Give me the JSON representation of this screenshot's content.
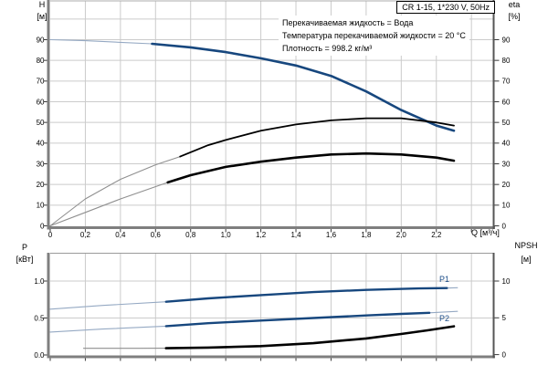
{
  "title_box": {
    "text": "CR 1-15, 1*230 V, 50Hz"
  },
  "info_lines": [
    "Перекачиваемая жидкость = Вода",
    "Температура перекачиваемой жидкости = 20 °C",
    "Плотность = 998.2 кг/м³"
  ],
  "colors": {
    "curve_blue": "#17477E",
    "curve_blue_light": "#95A9C3",
    "curve_black": "#000000",
    "curve_gray_light": "#8F8F8F",
    "grid": "#CBCBCB",
    "spine": "#7F7F7F",
    "spine_dark": "#555555",
    "tick": "#3A3A3A",
    "label_blue": "#1D4E89"
  },
  "chart_data": [
    {
      "type": "line",
      "title": "CR 1-15, 1*230 V, 50Hz",
      "x_axis": {
        "label": "Q [м³/ч]",
        "min": 0,
        "max": 2.53,
        "grid_step": 0.2,
        "ticks": [
          {
            "v": 0,
            "t": "0"
          },
          {
            "v": 0.2,
            "t": "0,2"
          },
          {
            "v": 0.4,
            "t": "0,4"
          },
          {
            "v": 0.6,
            "t": "0,6"
          },
          {
            "v": 0.8,
            "t": "0,8"
          },
          {
            "v": 1.0,
            "t": "1,0"
          },
          {
            "v": 1.2,
            "t": "1,2"
          },
          {
            "v": 1.4,
            "t": "1,4"
          },
          {
            "v": 1.6,
            "t": "1,6"
          },
          {
            "v": 1.8,
            "t": "1,8"
          },
          {
            "v": 2.0,
            "t": "2,0"
          },
          {
            "v": 2.2,
            "t": "2,2"
          }
        ]
      },
      "y_left": {
        "label": "H",
        "unit": "[м]",
        "min": 0,
        "max": 109,
        "ticks": [
          {
            "v": 90,
            "t": "90"
          },
          {
            "v": 80,
            "t": "80"
          },
          {
            "v": 70,
            "t": "70"
          },
          {
            "v": 60,
            "t": "60"
          },
          {
            "v": 50,
            "t": "50"
          },
          {
            "v": 40,
            "t": "40"
          },
          {
            "v": 30,
            "t": "30"
          },
          {
            "v": 20,
            "t": "20"
          },
          {
            "v": 10,
            "t": "10"
          },
          {
            "v": 0,
            "t": "0"
          }
        ]
      },
      "y_right": {
        "label": "eta",
        "unit": "[%]",
        "min": 0,
        "max": 109,
        "ticks": [
          {
            "v": 90,
            "t": "90"
          },
          {
            "v": 80,
            "t": "80"
          },
          {
            "v": 70,
            "t": "70"
          },
          {
            "v": 60,
            "t": "60"
          },
          {
            "v": 50,
            "t": "50"
          },
          {
            "v": 40,
            "t": "40"
          },
          {
            "v": 30,
            "t": "30"
          },
          {
            "v": 20,
            "t": "20"
          },
          {
            "v": 10,
            "t": "10"
          },
          {
            "v": 0,
            "t": "0"
          }
        ]
      },
      "series": [
        {
          "id": "curve-H",
          "name": "H",
          "color_role": "blue",
          "scale": "left",
          "width": 2.6,
          "thick_from": 0.58,
          "thick_to": 2.3,
          "x": [
            0,
            0.2,
            0.4,
            0.58,
            0.8,
            1.0,
            1.2,
            1.4,
            1.6,
            1.8,
            2.0,
            2.2,
            2.3
          ],
          "y": [
            90,
            89.5,
            88.7,
            88,
            86.3,
            84,
            81,
            77.5,
            72.5,
            65,
            56,
            48.5,
            46
          ]
        },
        {
          "id": "curve-eta-upper",
          "name": "eta (upper)",
          "color_role": "black",
          "scale": "right",
          "width": 1.8,
          "thick_from": 0.74,
          "thick_to": 2.3,
          "x": [
            0,
            0.2,
            0.4,
            0.6,
            0.74,
            0.9,
            1.0,
            1.2,
            1.4,
            1.6,
            1.8,
            2.0,
            2.2,
            2.3
          ],
          "y": [
            0,
            13,
            22.5,
            29.5,
            33.5,
            39,
            41.5,
            46,
            49,
            51,
            52,
            52,
            50,
            48.5
          ]
        },
        {
          "id": "curve-eta-lower",
          "name": "eta (lower)",
          "color_role": "black",
          "scale": "right",
          "width": 2.6,
          "thick_from": 0.67,
          "thick_to": 2.3,
          "x": [
            0,
            0.2,
            0.4,
            0.67,
            0.8,
            1.0,
            1.2,
            1.4,
            1.6,
            1.8,
            2.0,
            2.2,
            2.3
          ],
          "y": [
            0,
            6.5,
            13,
            21,
            24.5,
            28.5,
            31,
            33,
            34.5,
            35,
            34.5,
            33,
            31.5
          ]
        }
      ]
    },
    {
      "type": "line",
      "x_axis": {
        "label": "",
        "min": 0,
        "max": 2.53,
        "grid_step": 0.2,
        "ticks": []
      },
      "y_left": {
        "label": "P",
        "unit": "[кВт]",
        "min": 0,
        "max": 1.38,
        "ticks": [
          {
            "v": 1.0,
            "t": "1.0"
          },
          {
            "v": 0.5,
            "t": "0.5"
          },
          {
            "v": 0,
            "t": "0.0"
          }
        ]
      },
      "y_right": {
        "label": "NPSH",
        "unit": "[м]",
        "min": 0,
        "max": 13.7,
        "ticks": [
          {
            "v": 10,
            "t": "10"
          },
          {
            "v": 5,
            "t": "5"
          },
          {
            "v": 0,
            "t": "0"
          }
        ]
      },
      "series": [
        {
          "id": "curve-P1",
          "name": "P1",
          "curve_label": "P1",
          "color_role": "blue",
          "scale": "left",
          "width": 2.4,
          "thick_from": 0.66,
          "thick_to": 2.26,
          "x": [
            0,
            0.3,
            0.66,
            0.9,
            1.2,
            1.5,
            1.8,
            2.1,
            2.26,
            2.32
          ],
          "y": [
            0.62,
            0.67,
            0.72,
            0.765,
            0.81,
            0.85,
            0.88,
            0.9,
            0.905,
            0.91
          ]
        },
        {
          "id": "curve-P2",
          "name": "P2",
          "curve_label": "P2",
          "color_role": "blue",
          "scale": "left",
          "width": 2.4,
          "thick_from": 0.66,
          "thick_to": 2.16,
          "x": [
            0,
            0.3,
            0.66,
            0.9,
            1.2,
            1.5,
            1.8,
            2.0,
            2.16,
            2.32
          ],
          "y": [
            0.31,
            0.35,
            0.39,
            0.43,
            0.465,
            0.5,
            0.535,
            0.555,
            0.57,
            0.59
          ]
        },
        {
          "id": "curve-NPSH",
          "name": "NPSH",
          "color_role": "black",
          "scale": "right",
          "width": 2.6,
          "thick_from": 0.66,
          "thick_to": 2.3,
          "x": [
            0.19,
            0.5,
            0.66,
            0.9,
            1.2,
            1.5,
            1.8,
            2.0,
            2.15,
            2.3
          ],
          "y": [
            0.85,
            0.85,
            0.87,
            0.95,
            1.15,
            1.55,
            2.2,
            2.8,
            3.3,
            3.85
          ]
        }
      ]
    }
  ]
}
